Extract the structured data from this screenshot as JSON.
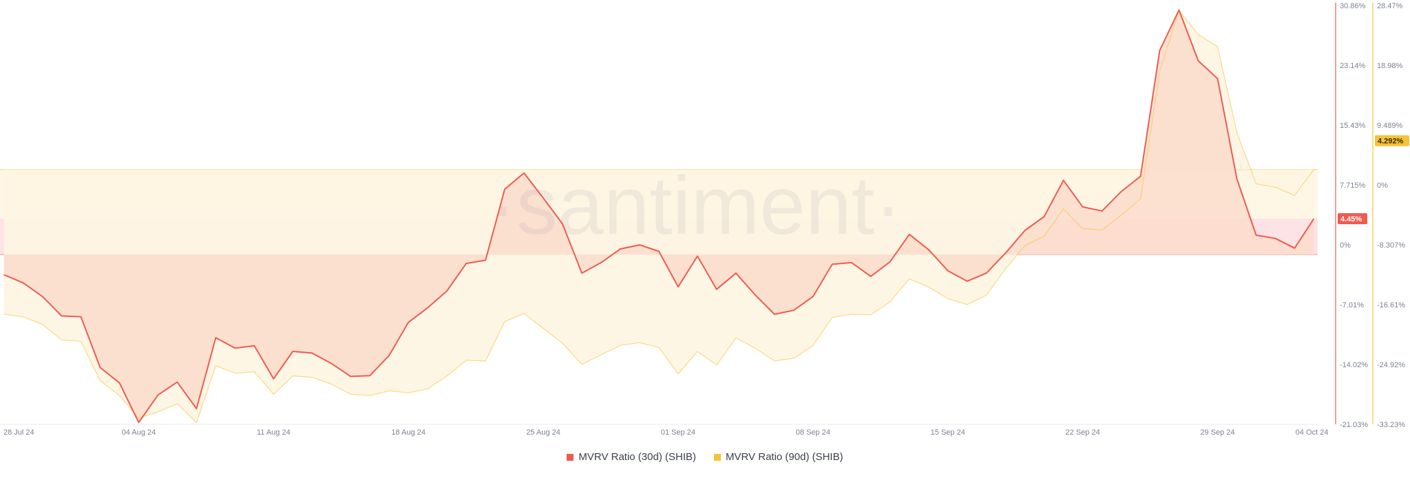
{
  "watermark": "·santiment·",
  "chart_data": {
    "type": "area",
    "x_tick_labels": [
      "28 Jul 24",
      "04 Aug 24",
      "11 Aug 24",
      "18 Aug 24",
      "25 Aug 24",
      "01 Sep 24",
      "08 Sep 24",
      "15 Sep 24",
      "22 Sep 24",
      "29 Sep 24",
      "04 Oct 24"
    ],
    "x_tick_days": [
      0,
      7,
      14,
      21,
      28,
      35,
      42,
      49,
      56,
      63,
      68.75
    ],
    "x_range_days": [
      -0.2,
      68.2
    ],
    "left_axis": {
      "ticks": [
        "30.86%",
        "23.14%",
        "15.43%",
        "7.715%",
        "0%",
        "-7.01%",
        "-14.02%",
        "-21.03%"
      ],
      "range": [
        -21.03,
        30.86
      ],
      "color": "#f05a4f",
      "current_value_label": "4.45%",
      "current_value": 4.45
    },
    "right_axis": {
      "ticks": [
        "28.47%",
        "18.98%",
        "9.489%",
        "0%",
        "-8.307%",
        "-16.61%",
        "-24.92%",
        "-33.23%"
      ],
      "range": [
        -33.23,
        28.47
      ],
      "color": "#f5c338",
      "current_value_label": "4.292%",
      "current_value": 4.292
    },
    "series": [
      {
        "name": "MVRV Ratio (30d) (SHIB)",
        "axis": "left",
        "color": "#f05a4f",
        "fill": "#fcdccb",
        "values": [
          [
            0,
            -2.5
          ],
          [
            1,
            -3.5
          ],
          [
            2,
            -5.2
          ],
          [
            3,
            -7.6
          ],
          [
            4,
            -7.7
          ],
          [
            5,
            -14.0
          ],
          [
            6,
            -15.9
          ],
          [
            7,
            -20.8
          ],
          [
            8,
            -17.4
          ],
          [
            9,
            -15.8
          ],
          [
            10,
            -19.1
          ],
          [
            11,
            -10.3
          ],
          [
            12,
            -11.6
          ],
          [
            13,
            -11.3
          ],
          [
            14,
            -15.4
          ],
          [
            15,
            -12.0
          ],
          [
            16,
            -12.2
          ],
          [
            17,
            -13.5
          ],
          [
            18,
            -15.1
          ],
          [
            19,
            -15.0
          ],
          [
            20,
            -12.5
          ],
          [
            21,
            -8.4
          ],
          [
            22,
            -6.6
          ],
          [
            23,
            -4.5
          ],
          [
            24,
            -1.1
          ],
          [
            25,
            -0.7
          ],
          [
            26,
            8.1
          ],
          [
            27,
            10.1
          ],
          [
            28,
            7.0
          ],
          [
            29,
            3.8
          ],
          [
            30,
            -2.3
          ],
          [
            31,
            -1.0
          ],
          [
            32,
            0.7
          ],
          [
            33,
            1.2
          ],
          [
            34,
            0.4
          ],
          [
            35,
            -4.0
          ],
          [
            36,
            -0.2
          ],
          [
            37,
            -4.3
          ],
          [
            38,
            -2.3
          ],
          [
            39,
            -5.0
          ],
          [
            40,
            -7.4
          ],
          [
            41,
            -6.9
          ],
          [
            42,
            -5.2
          ],
          [
            43,
            -1.2
          ],
          [
            44,
            -1.0
          ],
          [
            45,
            -2.7
          ],
          [
            46,
            -0.9
          ],
          [
            47,
            2.5
          ],
          [
            48,
            0.6
          ],
          [
            49,
            -2.0
          ],
          [
            50,
            -3.3
          ],
          [
            51,
            -2.3
          ],
          [
            52,
            0.2
          ],
          [
            53,
            3.0
          ],
          [
            54,
            4.7
          ],
          [
            55,
            9.2
          ],
          [
            56,
            5.9
          ],
          [
            57,
            5.4
          ],
          [
            58,
            7.8
          ],
          [
            59,
            9.7
          ],
          [
            60,
            25.3
          ],
          [
            61,
            30.3
          ],
          [
            62,
            24.0
          ],
          [
            63,
            21.8
          ],
          [
            64,
            9.4
          ],
          [
            65,
            2.4
          ],
          [
            66,
            2.0
          ],
          [
            67,
            0.8
          ],
          [
            68,
            4.45
          ]
        ]
      },
      {
        "name": "MVRV Ratio (90d) (SHIB)",
        "axis": "right",
        "color": "#f5c338",
        "fill": "#fef5e2",
        "values": [
          [
            0,
            -17.0
          ],
          [
            1,
            -17.4
          ],
          [
            2,
            -18.5
          ],
          [
            3,
            -20.8
          ],
          [
            4,
            -21.0
          ],
          [
            5,
            -26.8
          ],
          [
            6,
            -29.0
          ],
          [
            7,
            -32.3
          ],
          [
            8,
            -31.4
          ],
          [
            9,
            -30.2
          ],
          [
            10,
            -33.0
          ],
          [
            11,
            -24.6
          ],
          [
            12,
            -25.7
          ],
          [
            13,
            -25.5
          ],
          [
            14,
            -28.8
          ],
          [
            15,
            -26.1
          ],
          [
            16,
            -26.3
          ],
          [
            17,
            -27.3
          ],
          [
            18,
            -28.8
          ],
          [
            19,
            -29.0
          ],
          [
            20,
            -28.3
          ],
          [
            21,
            -28.6
          ],
          [
            22,
            -28.0
          ],
          [
            23,
            -26.1
          ],
          [
            24,
            -23.8
          ],
          [
            25,
            -23.9
          ],
          [
            26,
            -18.1
          ],
          [
            27,
            -16.9
          ],
          [
            28,
            -19.1
          ],
          [
            29,
            -21.3
          ],
          [
            30,
            -24.4
          ],
          [
            31,
            -23.0
          ],
          [
            32,
            -21.6
          ],
          [
            33,
            -21.2
          ],
          [
            34,
            -21.9
          ],
          [
            35,
            -25.8
          ],
          [
            36,
            -22.5
          ],
          [
            37,
            -24.5
          ],
          [
            38,
            -20.5
          ],
          [
            39,
            -22.0
          ],
          [
            40,
            -23.9
          ],
          [
            41,
            -23.5
          ],
          [
            42,
            -21.6
          ],
          [
            43,
            -17.5
          ],
          [
            44,
            -17.0
          ],
          [
            45,
            -17.1
          ],
          [
            46,
            -15.2
          ],
          [
            47,
            -11.8
          ],
          [
            48,
            -13.0
          ],
          [
            49,
            -14.7
          ],
          [
            50,
            -15.6
          ],
          [
            51,
            -14.2
          ],
          [
            52,
            -10.3
          ],
          [
            53,
            -6.9
          ],
          [
            54,
            -5.5
          ],
          [
            55,
            -1.5
          ],
          [
            56,
            -4.4
          ],
          [
            57,
            -4.6
          ],
          [
            58,
            -2.4
          ],
          [
            59,
            0.0
          ],
          [
            60,
            18.8
          ],
          [
            61,
            27.7
          ],
          [
            62,
            24.2
          ],
          [
            63,
            22.4
          ],
          [
            64,
            9.8
          ],
          [
            65,
            2.2
          ],
          [
            66,
            1.7
          ],
          [
            67,
            0.5
          ],
          [
            68,
            4.292
          ]
        ]
      }
    ],
    "legend_position": "bottom-center",
    "grid": false
  }
}
